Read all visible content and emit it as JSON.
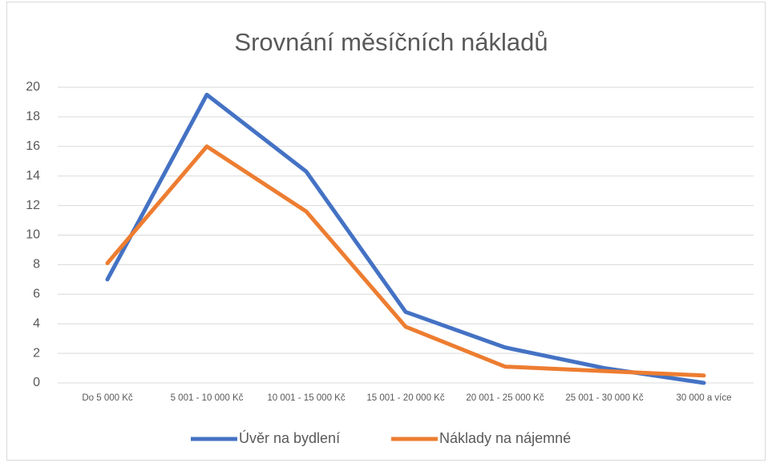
{
  "chart_data": {
    "type": "line",
    "title": "Srovnání měsíčních nákladů",
    "categories": [
      "Do 5 000 Kč",
      "5 001 - 10 000 Kč",
      "10 001 - 15 000 Kč",
      "15 001 - 20 000 Kč",
      "20 001 - 25 000 Kč",
      "25 001 - 30 000 Kč",
      "30 000 a více"
    ],
    "series": [
      {
        "name": "Úvěr na bydlení",
        "color": "#4472c4",
        "values": [
          7.0,
          19.5,
          14.3,
          4.8,
          2.4,
          1.0,
          0
        ]
      },
      {
        "name": "Náklady na nájemné",
        "color": "#ed7d31",
        "values": [
          8.1,
          16,
          11.6,
          3.8,
          1.1,
          0.8,
          0.5
        ]
      }
    ],
    "ylim": [
      0,
      20
    ],
    "yticks": [
      0,
      2,
      4,
      6,
      8,
      10,
      12,
      14,
      16,
      18,
      20
    ],
    "grid": true,
    "legend": "bottom"
  }
}
